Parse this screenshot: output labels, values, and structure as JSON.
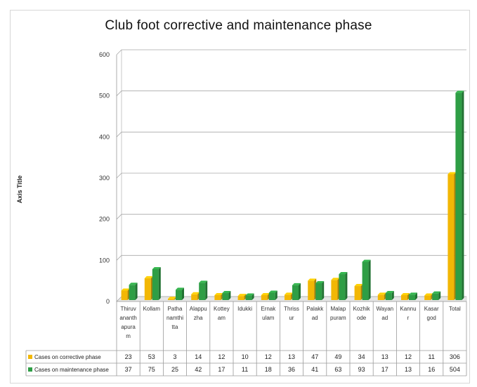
{
  "chart_data": {
    "type": "bar",
    "title": "Club foot corrective and maintenance phase",
    "ylabel": "Axis Title",
    "xlabel": "",
    "ylim": [
      0,
      600
    ],
    "yticks": [
      "0",
      "100",
      "200",
      "300",
      "400",
      "500",
      "600"
    ],
    "categories": [
      "Thiruvananthapuram",
      "Kollam",
      "Pathanamthitta",
      "Alappuzha",
      "Kottayam",
      "Idukki",
      "Ernakulam",
      "Thrissur",
      "Palakkad",
      "Malappuram",
      "Kozhikode",
      "Wayanad",
      "Kannur",
      "Kasargod",
      "Total"
    ],
    "category_labels": [
      [
        "Thiruv",
        "ananth",
        "apura",
        "m"
      ],
      [
        "Kollam"
      ],
      [
        "Patha",
        "namthi",
        "tta"
      ],
      [
        "Alappu",
        "zha"
      ],
      [
        "Kottey",
        "am"
      ],
      [
        "Idukki"
      ],
      [
        "Ernak",
        "ulam"
      ],
      [
        "Thriss",
        "ur"
      ],
      [
        "Palakk",
        "ad"
      ],
      [
        "Malap",
        "puram"
      ],
      [
        "Kozhik",
        "ode"
      ],
      [
        "Wayan",
        "ad"
      ],
      [
        "Kannu",
        "r"
      ],
      [
        "Kasar",
        "god"
      ],
      [
        "Total"
      ]
    ],
    "series": [
      {
        "name": "Cases on corrective phase",
        "values": [
          23,
          53,
          3,
          14,
          12,
          10,
          12,
          13,
          47,
          49,
          34,
          13,
          12,
          11,
          306
        ],
        "color": "#f2b705"
      },
      {
        "name": "Cases on maintenance phase",
        "values": [
          37,
          75,
          25,
          42,
          17,
          11,
          18,
          36,
          41,
          63,
          93,
          17,
          13,
          16,
          504
        ],
        "color": "#2e9e45"
      }
    ],
    "grid": true,
    "legend": "data-table"
  }
}
